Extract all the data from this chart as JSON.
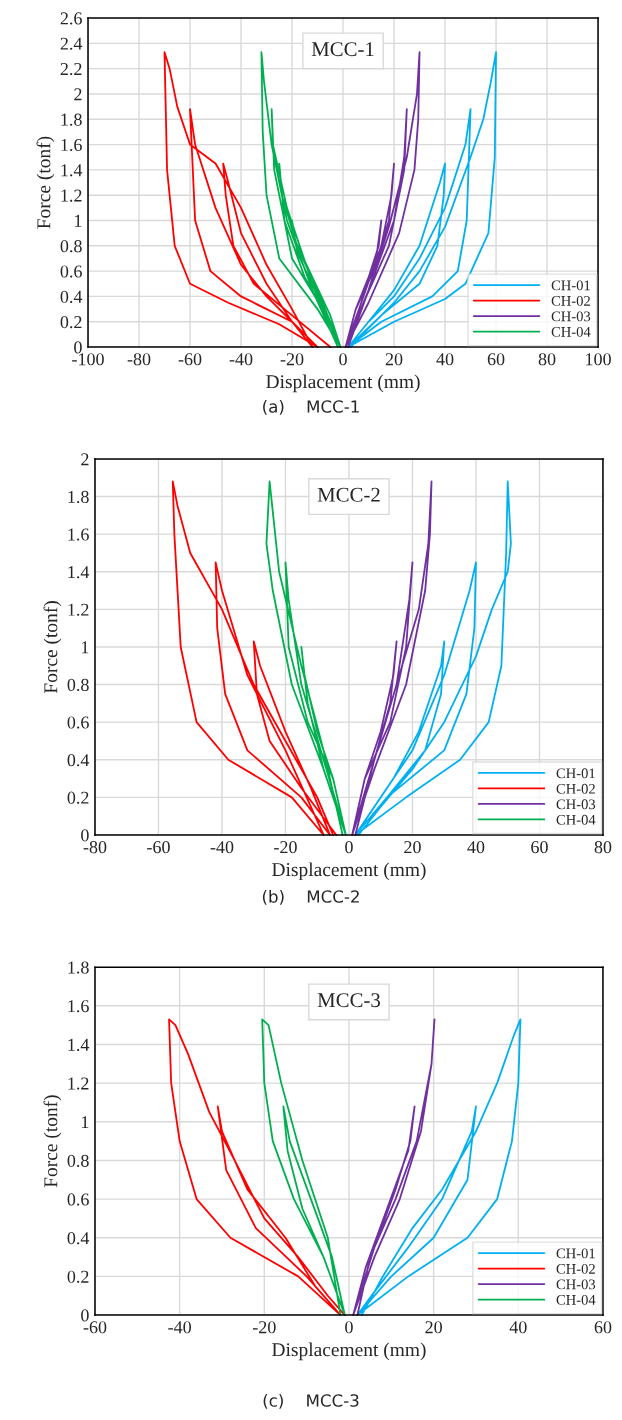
{
  "chart_data": [
    {
      "type": "line",
      "title": "MCC-1",
      "xlabel": "Displacement (mm)",
      "ylabel": "Force (tonf)",
      "annotations": [
        "(a)    MCC-1"
      ],
      "xlim": [
        -100,
        100
      ],
      "xticks": [
        -100,
        -80,
        -60,
        -40,
        -20,
        0,
        20,
        40,
        60,
        80,
        100
      ],
      "ylim": [
        0,
        2.6
      ],
      "yticks": [
        0,
        0.2,
        0.4,
        0.6,
        0.8,
        1,
        1.2,
        1.4,
        1.6,
        1.8,
        2,
        2.2,
        2.4,
        2.6
      ],
      "grid": true,
      "legend": "bottom right",
      "series": [
        {
          "name": "CH-01",
          "color": "#00b0f0",
          "x": [
            2,
            15,
            30,
            37,
            39.5,
            40,
            38,
            30,
            20,
            10,
            2,
            15,
            35,
            45,
            48.5,
            50,
            48,
            40,
            30,
            20,
            10,
            2,
            20,
            40,
            48,
            57,
            59.5,
            60,
            58,
            55,
            50,
            40,
            30,
            20,
            10,
            3
          ],
          "values": [
            0,
            0.25,
            0.5,
            0.8,
            1.2,
            1.45,
            1.3,
            0.8,
            0.45,
            0.2,
            0,
            0.2,
            0.4,
            0.6,
            1.0,
            1.88,
            1.6,
            1.1,
            0.7,
            0.4,
            0.2,
            0,
            0.2,
            0.38,
            0.5,
            0.9,
            1.5,
            2.33,
            2.1,
            1.8,
            1.5,
            0.95,
            0.6,
            0.35,
            0.15,
            0
          ]
        },
        {
          "name": "CH-02",
          "color": "#ff0000",
          "x": [
            -5,
            -20,
            -35,
            -43,
            -46,
            -47,
            -45,
            -40,
            -30,
            -20,
            -12,
            -20,
            -40,
            -52,
            -58,
            -60,
            -58,
            -50,
            -40,
            -30,
            -20,
            -10,
            -25,
            -45,
            -60,
            -66,
            -69,
            -70,
            -68,
            -65,
            -60,
            -50,
            -40,
            -30,
            -20,
            -12
          ],
          "values": [
            0,
            0.25,
            0.5,
            0.8,
            1.2,
            1.45,
            1.3,
            0.9,
            0.5,
            0.2,
            0,
            0.2,
            0.4,
            0.6,
            1.0,
            1.88,
            1.6,
            1.1,
            0.65,
            0.4,
            0.2,
            0,
            0.18,
            0.35,
            0.5,
            0.8,
            1.4,
            2.33,
            2.2,
            1.9,
            1.6,
            1.45,
            1.1,
            0.65,
            0.3,
            0
          ]
        },
        {
          "name": "CH-03",
          "color": "#7030a0",
          "x": [
            1,
            8,
            13,
            15,
            14,
            10,
            5,
            1,
            5,
            12,
            18,
            20,
            19,
            15,
            8,
            1,
            8,
            18,
            24,
            25,
            24,
            20,
            10,
            1,
            10,
            22,
            28,
            29.5,
            30,
            29,
            25,
            18,
            10,
            2
          ],
          "values": [
            0,
            0.4,
            0.7,
            1.0,
            0.8,
            0.55,
            0.3,
            0,
            0.3,
            0.6,
            1.0,
            1.45,
            1.2,
            0.8,
            0.4,
            0,
            0.35,
            0.8,
            1.4,
            1.88,
            1.5,
            1.0,
            0.45,
            0,
            0.35,
            0.9,
            1.4,
            1.8,
            2.33,
            2.0,
            1.5,
            0.95,
            0.45,
            0
          ]
        },
        {
          "name": "CH-04",
          "color": "#00b050",
          "x": [
            -1,
            -10,
            -18,
            -20,
            -19,
            -12,
            -5,
            -1,
            -5,
            -15,
            -23,
            -25,
            -24,
            -18,
            -8,
            -1,
            -8,
            -20,
            -27,
            -28,
            -27.5,
            -22,
            -12,
            -1,
            -10,
            -25,
            -30,
            -31.5,
            -32,
            -31,
            -28,
            -22,
            -12,
            -2
          ],
          "values": [
            0,
            0.4,
            0.75,
            1.0,
            0.85,
            0.55,
            0.25,
            0,
            0.2,
            0.55,
            1.0,
            1.45,
            1.2,
            0.8,
            0.35,
            0,
            0.3,
            0.7,
            1.4,
            1.88,
            1.6,
            1.1,
            0.5,
            0,
            0.3,
            0.7,
            1.2,
            1.7,
            2.33,
            2.1,
            1.6,
            1.0,
            0.45,
            0
          ]
        }
      ]
    },
    {
      "type": "line",
      "title": "MCC-2",
      "xlabel": "Displacement (mm)",
      "ylabel": "Force (tonf)",
      "annotations": [
        "(b)    MCC-2"
      ],
      "xlim": [
        -80,
        80
      ],
      "xticks": [
        -80,
        -60,
        -40,
        -20,
        0,
        20,
        40,
        60,
        80
      ],
      "ylim": [
        0,
        2
      ],
      "yticks": [
        0,
        0.2,
        0.4,
        0.6,
        0.8,
        1,
        1.2,
        1.4,
        1.6,
        1.8,
        2
      ],
      "grid": true,
      "legend": "bottom right",
      "series": [
        {
          "name": "CH-01",
          "color": "#00b0f0",
          "x": [
            2,
            12,
            24,
            29,
            30,
            29,
            22,
            14,
            6,
            2,
            12,
            30,
            37,
            39.5,
            40,
            38,
            30,
            20,
            10,
            2,
            18,
            35,
            44,
            48,
            49.5,
            50,
            51,
            50,
            45,
            40,
            30,
            20,
            10,
            3
          ],
          "values": [
            0,
            0.2,
            0.45,
            0.75,
            1.03,
            0.9,
            0.55,
            0.3,
            0.1,
            0,
            0.2,
            0.45,
            0.75,
            1.1,
            1.45,
            1.3,
            0.85,
            0.45,
            0.2,
            0,
            0.2,
            0.4,
            0.6,
            0.9,
            1.5,
            1.88,
            1.55,
            1.4,
            1.2,
            0.95,
            0.6,
            0.35,
            0.15,
            0
          ]
        },
        {
          "name": "CH-02",
          "color": "#ff0000",
          "x": [
            -4,
            -15,
            -25,
            -29,
            -30,
            -28,
            -20,
            -12,
            -6,
            -15,
            -32,
            -39,
            -41.5,
            -42,
            -40,
            -32,
            -20,
            -8,
            -18,
            -38,
            -48,
            -53,
            -55,
            -55.5,
            -54,
            -50,
            -40,
            -30,
            -20,
            -10,
            -5
          ],
          "values": [
            0,
            0.25,
            0.5,
            0.75,
            1.03,
            0.9,
            0.55,
            0.25,
            0,
            0.2,
            0.45,
            0.75,
            1.1,
            1.45,
            1.3,
            0.85,
            0.45,
            0,
            0.2,
            0.4,
            0.6,
            1.0,
            1.6,
            1.88,
            1.75,
            1.5,
            1.2,
            0.8,
            0.5,
            0.2,
            0
          ]
        },
        {
          "name": "CH-03",
          "color": "#7030a0",
          "x": [
            1,
            8,
            13,
            15,
            14,
            10,
            5,
            1,
            5,
            13,
            18,
            20,
            19,
            15,
            8,
            1,
            8,
            18,
            24,
            25.5,
            26,
            25,
            22,
            15,
            8,
            2
          ],
          "values": [
            0,
            0.4,
            0.7,
            1.03,
            0.85,
            0.55,
            0.3,
            0,
            0.3,
            0.6,
            1.0,
            1.45,
            1.25,
            0.8,
            0.4,
            0,
            0.35,
            0.8,
            1.3,
            1.6,
            1.88,
            1.55,
            1.2,
            0.8,
            0.4,
            0
          ]
        },
        {
          "name": "CH-04",
          "color": "#00b050",
          "x": [
            -1,
            -8,
            -13,
            -15,
            -14,
            -10,
            -5,
            -1,
            -5,
            -13,
            -19,
            -20,
            -19,
            -15,
            -8,
            -1,
            -8,
            -18,
            -24,
            -26,
            -25,
            -22,
            -15,
            -8,
            -2
          ],
          "values": [
            0,
            0.35,
            0.7,
            1.0,
            0.85,
            0.55,
            0.3,
            0,
            0.3,
            0.6,
            1.0,
            1.45,
            1.25,
            0.8,
            0.4,
            0,
            0.35,
            0.8,
            1.3,
            1.55,
            1.88,
            1.4,
            0.9,
            0.45,
            0
          ]
        }
      ]
    },
    {
      "type": "line",
      "title": "MCC-3",
      "xlabel": "Displacement (mm)",
      "ylabel": "Force (tonf)",
      "annotations": [
        "(c)    MCC-3"
      ],
      "xlim": [
        -60,
        60
      ],
      "xticks": [
        -60,
        -40,
        -20,
        0,
        20,
        40,
        60
      ],
      "ylim": [
        0,
        1.8
      ],
      "yticks": [
        0,
        0.2,
        0.4,
        0.6,
        0.8,
        1,
        1.2,
        1.4,
        1.6,
        1.8
      ],
      "grid": true,
      "legend": "bottom right",
      "series": [
        {
          "name": "CH-01",
          "color": "#00b0f0",
          "x": [
            2,
            10,
            20,
            28,
            30,
            29,
            22,
            14,
            6,
            2,
            14,
            28,
            35,
            38.5,
            40,
            40.5,
            39,
            35,
            30,
            22,
            15,
            8,
            3
          ],
          "values": [
            0,
            0.2,
            0.4,
            0.7,
            1.08,
            0.95,
            0.6,
            0.35,
            0.12,
            0,
            0.2,
            0.4,
            0.6,
            0.9,
            1.2,
            1.53,
            1.45,
            1.2,
            0.95,
            0.65,
            0.45,
            0.2,
            0
          ]
        },
        {
          "name": "CH-02",
          "color": "#ff0000",
          "x": [
            -2,
            -10,
            -22,
            -29,
            -31,
            -30,
            -24,
            -15,
            -8,
            -2,
            -12,
            -28,
            -36,
            -40,
            -42,
            -42.5,
            -41,
            -38,
            -33,
            -27,
            -20,
            -12,
            -5,
            -1
          ],
          "values": [
            0,
            0.2,
            0.45,
            0.75,
            1.08,
            0.95,
            0.65,
            0.4,
            0.15,
            0,
            0.2,
            0.4,
            0.6,
            0.9,
            1.2,
            1.53,
            1.5,
            1.35,
            1.05,
            0.8,
            0.5,
            0.3,
            0.1,
            0
          ]
        },
        {
          "name": "CH-03",
          "color": "#7030a0",
          "x": [
            1,
            6,
            11,
            14.5,
            15.5,
            14,
            9,
            4,
            1,
            6,
            12,
            17,
            19.5,
            20.2,
            19.5,
            16,
            11,
            5,
            2
          ],
          "values": [
            0,
            0.35,
            0.65,
            0.9,
            1.08,
            0.85,
            0.55,
            0.25,
            0,
            0.3,
            0.6,
            0.95,
            1.3,
            1.53,
            1.3,
            0.9,
            0.6,
            0.3,
            0
          ]
        },
        {
          "name": "CH-04",
          "color": "#00b050",
          "x": [
            -1,
            -6,
            -11,
            -14.5,
            -15.5,
            -14,
            -9,
            -4,
            -1,
            -6,
            -13,
            -18,
            -20,
            -20.5,
            -19,
            -16,
            -11,
            -5,
            -2
          ],
          "values": [
            0,
            0.3,
            0.55,
            0.85,
            1.08,
            0.9,
            0.6,
            0.3,
            0,
            0.3,
            0.6,
            0.9,
            1.2,
            1.53,
            1.5,
            1.2,
            0.8,
            0.4,
            0
          ]
        }
      ]
    }
  ]
}
